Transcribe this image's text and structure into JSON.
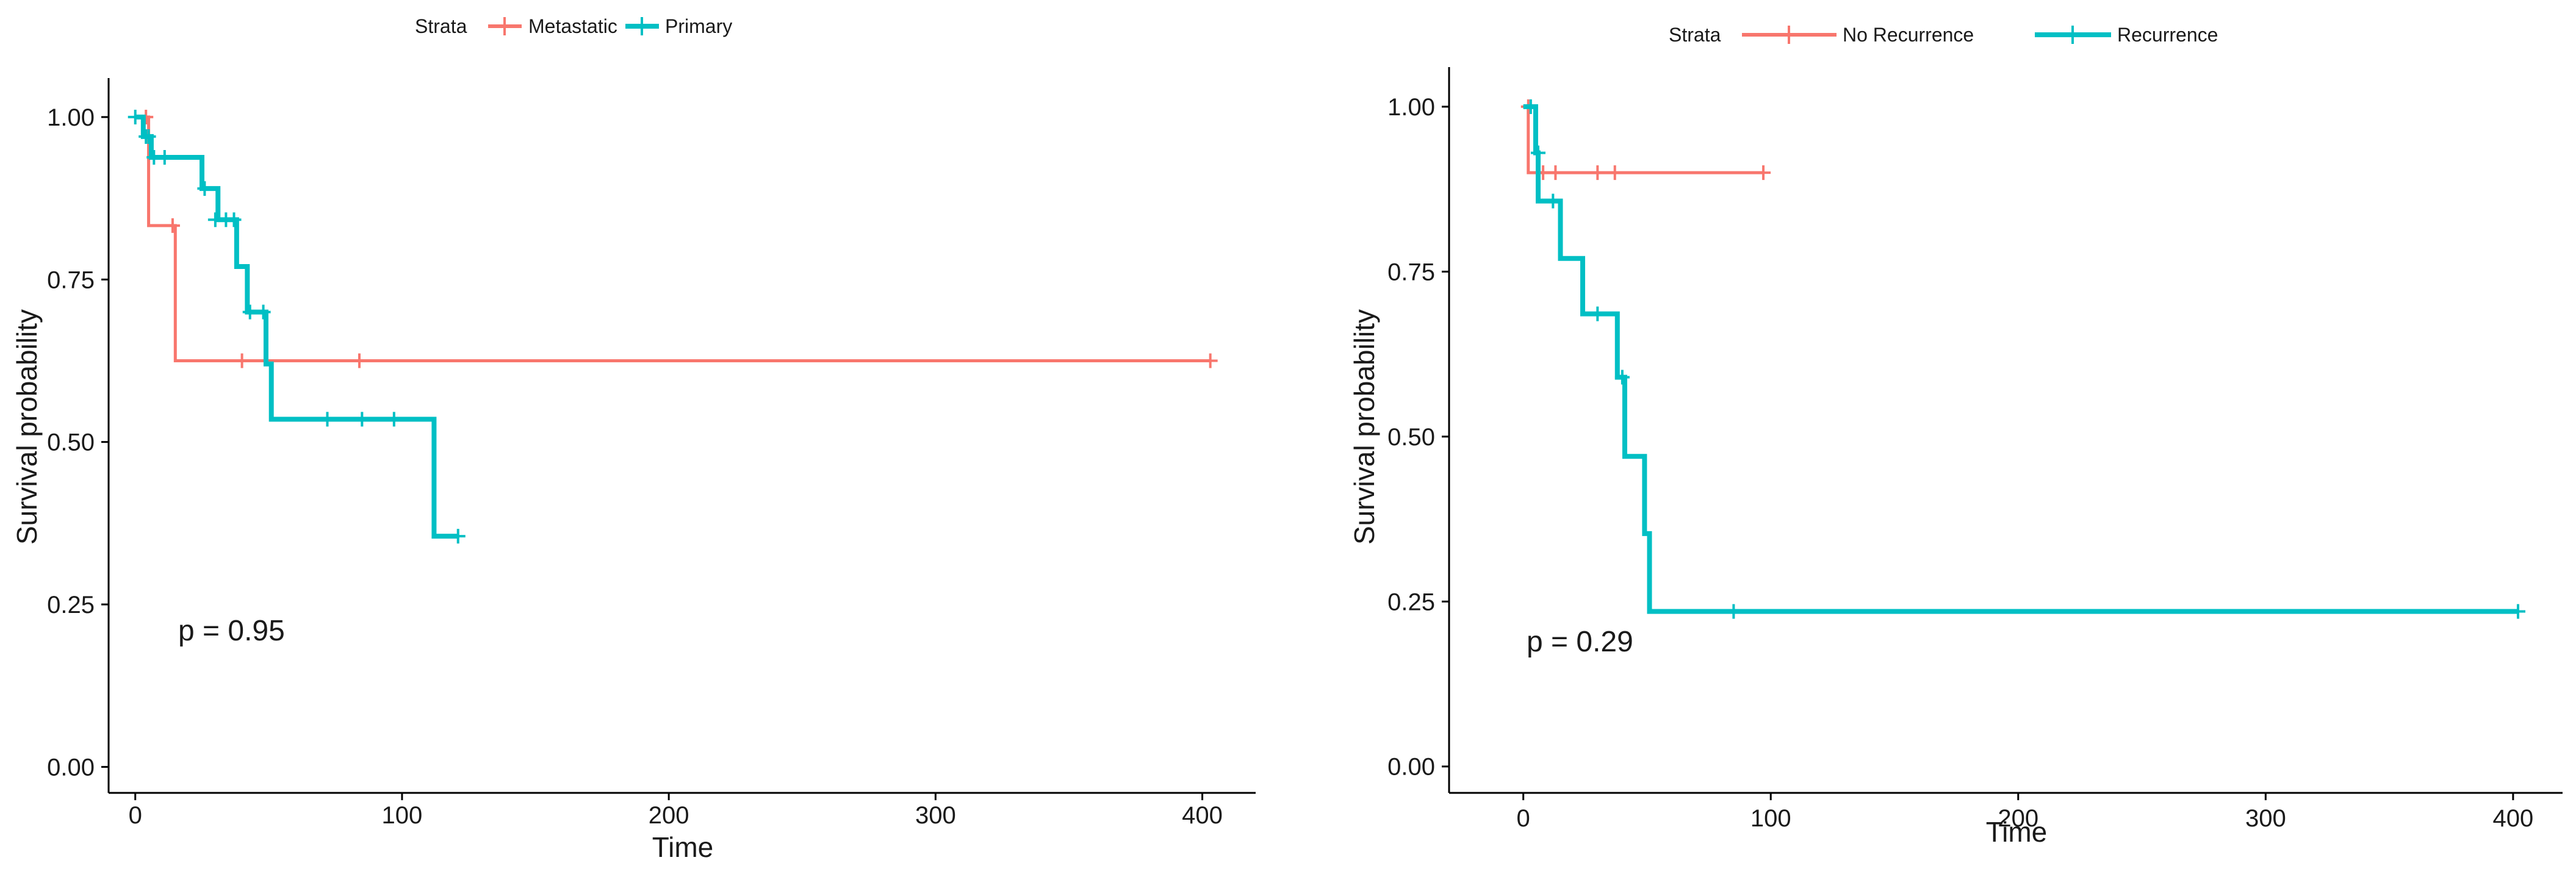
{
  "chart_data": [
    {
      "type": "line",
      "subtype": "kaplan-meier-step",
      "xlabel": "Time",
      "ylabel": "Survival probability",
      "xlim": [
        -10,
        420
      ],
      "ylim": [
        -0.04,
        1.06
      ],
      "xticks": [
        0,
        100,
        200,
        300,
        400
      ],
      "yticks": [
        0.0,
        0.25,
        0.5,
        0.75,
        1.0
      ],
      "ytick_labels": [
        "0.00",
        "0.25",
        "0.50",
        "0.75",
        "1.00"
      ],
      "grid": false,
      "legend": {
        "title": "Strata",
        "position": "top"
      },
      "annotation": "p = 0.95",
      "series": [
        {
          "name": "Metastatic",
          "color": "#F8766D",
          "steps": [
            [
              0,
              1.0
            ],
            [
              5,
              0.833
            ],
            [
              15,
              0.625
            ],
            [
              403,
              0.625
            ]
          ],
          "censored": [
            [
              4,
              1.0
            ],
            [
              14,
              0.833
            ],
            [
              40,
              0.625
            ],
            [
              84,
              0.625
            ],
            [
              403,
              0.625
            ]
          ]
        },
        {
          "name": "Primary",
          "color": "#00BFC4",
          "steps": [
            [
              0,
              1.0
            ],
            [
              3,
              0.97
            ],
            [
              6,
              0.938
            ],
            [
              25,
              0.89
            ],
            [
              31,
              0.842
            ],
            [
              38,
              0.77
            ],
            [
              42,
              0.7
            ],
            [
              49,
              0.62
            ],
            [
              51,
              0.535
            ],
            [
              112,
              0.355
            ],
            [
              121,
              0.355
            ]
          ],
          "censored": [
            [
              0,
              1.0
            ],
            [
              4,
              0.97
            ],
            [
              5,
              0.97
            ],
            [
              7,
              0.938
            ],
            [
              11,
              0.938
            ],
            [
              26,
              0.89
            ],
            [
              30,
              0.842
            ],
            [
              34,
              0.842
            ],
            [
              37,
              0.842
            ],
            [
              43,
              0.7
            ],
            [
              48,
              0.7
            ],
            [
              72,
              0.535
            ],
            [
              85,
              0.535
            ],
            [
              97,
              0.535
            ],
            [
              121,
              0.355
            ]
          ]
        }
      ]
    },
    {
      "type": "line",
      "subtype": "kaplan-meier-step",
      "xlabel": "Time",
      "ylabel": "Survival probability",
      "xlim": [
        -30,
        420
      ],
      "ylim": [
        -0.04,
        1.06
      ],
      "xticks": [
        0,
        100,
        200,
        300,
        400
      ],
      "yticks": [
        0.0,
        0.25,
        0.5,
        0.75,
        1.0
      ],
      "ytick_labels": [
        "0.00",
        "0.25",
        "0.50",
        "0.75",
        "1.00"
      ],
      "grid": false,
      "legend": {
        "title": "Strata",
        "position": "top"
      },
      "annotation": "p = 0.29",
      "series": [
        {
          "name": "No Recurrence",
          "color": "#F8766D",
          "steps": [
            [
              0,
              1.0
            ],
            [
              2,
              0.9
            ],
            [
              97,
              0.9
            ]
          ],
          "censored": [
            [
              2,
              1.0
            ],
            [
              8,
              0.9
            ],
            [
              13,
              0.9
            ],
            [
              30,
              0.9
            ],
            [
              37,
              0.9
            ],
            [
              97,
              0.9
            ]
          ]
        },
        {
          "name": "Recurrence",
          "color": "#00BFC4",
          "steps": [
            [
              0,
              1.0
            ],
            [
              5,
              0.93
            ],
            [
              6,
              0.857
            ],
            [
              15,
              0.77
            ],
            [
              24,
              0.686
            ],
            [
              38,
              0.59
            ],
            [
              41,
              0.47
            ],
            [
              49,
              0.353
            ],
            [
              51,
              0.235
            ],
            [
              402,
              0.235
            ]
          ],
          "censored": [
            [
              3,
              1.0
            ],
            [
              6,
              0.93
            ],
            [
              12,
              0.857
            ],
            [
              30,
              0.686
            ],
            [
              40,
              0.59
            ],
            [
              85,
              0.235
            ],
            [
              402,
              0.235
            ]
          ]
        }
      ]
    }
  ]
}
